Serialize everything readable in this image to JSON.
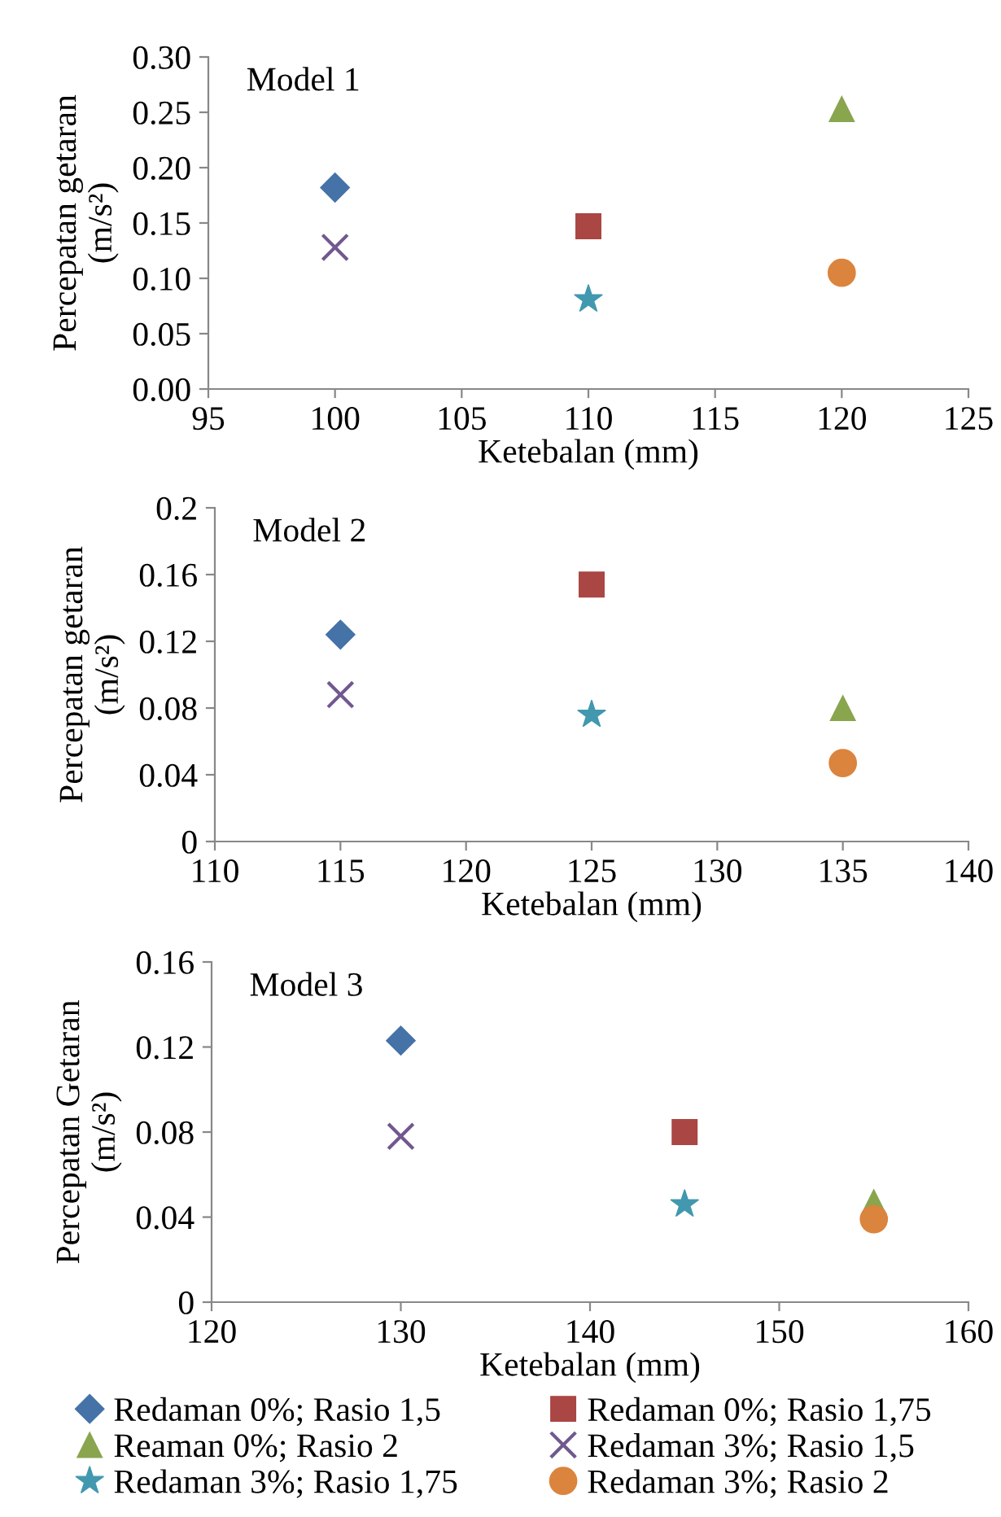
{
  "chart_data": [
    {
      "type": "scatter",
      "xlabel": "Ketebalan (mm)",
      "ylabel": "Percepatan getaran\n(m/s²)",
      "annotations": [
        "Model 1"
      ],
      "xlim": [
        95,
        125
      ],
      "xticks": [
        95,
        100,
        105,
        110,
        115,
        120,
        125
      ],
      "ylim": [
        0,
        0.3
      ],
      "yticks": [
        {
          "value": 0,
          "label": "0.00"
        },
        {
          "value": 0.05,
          "label": "0.05"
        },
        {
          "value": 0.1,
          "label": "0.10"
        },
        {
          "value": 0.15,
          "label": "0.15"
        },
        {
          "value": 0.2,
          "label": "0.20"
        },
        {
          "value": 0.25,
          "label": "0.25"
        },
        {
          "value": 0.3,
          "label": "0.30"
        }
      ],
      "grid": false,
      "legend": false,
      "series": [
        {
          "color": "#4572a7",
          "marker": "diamond",
          "x": [
            100
          ],
          "values": [
            0.182
          ]
        },
        {
          "color": "#aa4643",
          "marker": "square",
          "x": [
            110
          ],
          "values": [
            0.147
          ]
        },
        {
          "color": "#89a54e",
          "marker": "triangle",
          "x": [
            120
          ],
          "values": [
            0.253
          ]
        },
        {
          "color": "#71588f",
          "marker": "cross",
          "x": [
            100
          ],
          "values": [
            0.128
          ]
        },
        {
          "color": "#4198af",
          "marker": "star",
          "x": [
            110
          ],
          "values": [
            0.081
          ]
        },
        {
          "color": "#db843d",
          "marker": "circle",
          "x": [
            120
          ],
          "values": [
            0.105
          ]
        }
      ]
    },
    {
      "type": "scatter",
      "xlabel": "Ketebalan (mm)",
      "ylabel": "Percepatan getaran\n(m/s²)",
      "annotations": [
        "Model 2"
      ],
      "xlim": [
        110,
        140
      ],
      "xticks": [
        110,
        115,
        120,
        125,
        130,
        135,
        140
      ],
      "ylim": [
        0,
        0.2
      ],
      "yticks": [
        0,
        0.04,
        0.08,
        0.12,
        0.16,
        0.2
      ],
      "grid": false,
      "legend": false,
      "series": [
        {
          "color": "#4572a7",
          "marker": "diamond",
          "x": [
            115
          ],
          "values": [
            0.124
          ]
        },
        {
          "color": "#aa4643",
          "marker": "square",
          "x": [
            125
          ],
          "values": [
            0.154
          ]
        },
        {
          "color": "#89a54e",
          "marker": "triangle",
          "x": [
            135
          ],
          "values": [
            0.08
          ]
        },
        {
          "color": "#71588f",
          "marker": "cross",
          "x": [
            115
          ],
          "values": [
            0.088
          ]
        },
        {
          "color": "#4198af",
          "marker": "star",
          "x": [
            125
          ],
          "values": [
            0.076
          ]
        },
        {
          "color": "#db843d",
          "marker": "circle",
          "x": [
            135
          ],
          "values": [
            0.047
          ]
        }
      ]
    },
    {
      "type": "scatter",
      "xlabel": "Ketebalan (mm)",
      "ylabel": "Percepatan Getaran\n(m/s²)",
      "annotations": [
        "Model 3"
      ],
      "xlim": [
        120,
        160
      ],
      "xticks": [
        120,
        130,
        140,
        150,
        160
      ],
      "ylim": [
        0,
        0.16
      ],
      "yticks": [
        0,
        0.04,
        0.08,
        0.12,
        0.16
      ],
      "grid": false,
      "legend": "bottom",
      "series": [
        {
          "name": "Redaman 0%; Rasio 1,5",
          "color": "#4572a7",
          "marker": "diamond",
          "x": [
            130
          ],
          "values": [
            0.123
          ]
        },
        {
          "name": "Redaman 0%; Rasio 1,75",
          "color": "#aa4643",
          "marker": "square",
          "x": [
            145
          ],
          "values": [
            0.08
          ]
        },
        {
          "name": "Reaman 0%; Rasio 2",
          "color": "#89a54e",
          "marker": "triangle",
          "x": [
            155
          ],
          "values": [
            0.047
          ]
        },
        {
          "name": "Redaman 3%; Rasio 1,5",
          "color": "#71588f",
          "marker": "cross",
          "x": [
            130
          ],
          "values": [
            0.078
          ]
        },
        {
          "name": "Redaman 3%; Rasio 1,75",
          "color": "#4198af",
          "marker": "star",
          "x": [
            145
          ],
          "values": [
            0.046
          ]
        },
        {
          "name": "Redaman 3%; Rasio 2",
          "color": "#db843d",
          "marker": "circle",
          "x": [
            155
          ],
          "values": [
            0.039
          ]
        }
      ]
    }
  ]
}
